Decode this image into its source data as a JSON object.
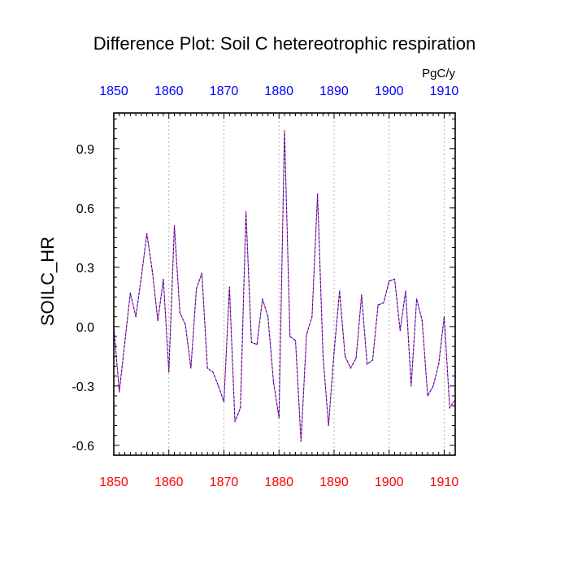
{
  "chart_data": {
    "type": "line",
    "title": "Difference Plot: Soil C hetereotrophic respiration",
    "units": "PgC/y",
    "xlabel": "",
    "ylabel": "SOILC_HR",
    "xlim": [
      1850,
      1912
    ],
    "ylim": [
      -0.65,
      1.08
    ],
    "xticks": [
      1850,
      1860,
      1870,
      1880,
      1890,
      1900,
      1910
    ],
    "yticks": [
      -0.6,
      -0.3,
      0.0,
      0.3,
      0.6,
      0.9
    ],
    "ytick_labels": [
      "-0.6",
      "-0.3",
      "0.0",
      "0.3",
      "0.6",
      "0.9"
    ],
    "bottom_axis_color": "#ff0000",
    "top_axis_color": "#0000ff",
    "grid": "vertical dotted at major x ticks",
    "series": [
      {
        "name": "SOILC_HR difference",
        "color": "#0000ff",
        "overlay_color": "#ff0000",
        "style": "dashed",
        "x": [
          1850,
          1851,
          1852,
          1853,
          1854,
          1855,
          1856,
          1857,
          1858,
          1859,
          1860,
          1861,
          1862,
          1863,
          1864,
          1865,
          1866,
          1867,
          1868,
          1869,
          1870,
          1871,
          1872,
          1873,
          1874,
          1875,
          1876,
          1877,
          1878,
          1879,
          1880,
          1881,
          1882,
          1883,
          1884,
          1885,
          1886,
          1887,
          1888,
          1889,
          1890,
          1891,
          1892,
          1893,
          1894,
          1895,
          1896,
          1897,
          1898,
          1899,
          1900,
          1901,
          1902,
          1903,
          1904,
          1905,
          1906,
          1907,
          1908,
          1909,
          1910,
          1911,
          1912
        ],
        "values": [
          0.0,
          -0.33,
          -0.08,
          0.17,
          0.05,
          0.25,
          0.47,
          0.28,
          0.03,
          0.24,
          -0.23,
          0.51,
          0.07,
          0.01,
          -0.21,
          0.19,
          0.27,
          -0.21,
          -0.23,
          -0.3,
          -0.38,
          0.2,
          -0.48,
          -0.41,
          0.58,
          -0.08,
          -0.09,
          0.14,
          0.05,
          -0.28,
          -0.46,
          0.99,
          -0.05,
          -0.07,
          -0.58,
          -0.04,
          0.05,
          0.67,
          -0.15,
          -0.5,
          -0.13,
          0.18,
          -0.15,
          -0.21,
          -0.16,
          0.16,
          -0.19,
          -0.17,
          0.11,
          0.12,
          0.23,
          0.24,
          -0.02,
          0.18,
          -0.3,
          0.14,
          0.03,
          -0.35,
          -0.3,
          -0.19,
          0.05,
          -0.41,
          -0.37
        ]
      }
    ]
  }
}
